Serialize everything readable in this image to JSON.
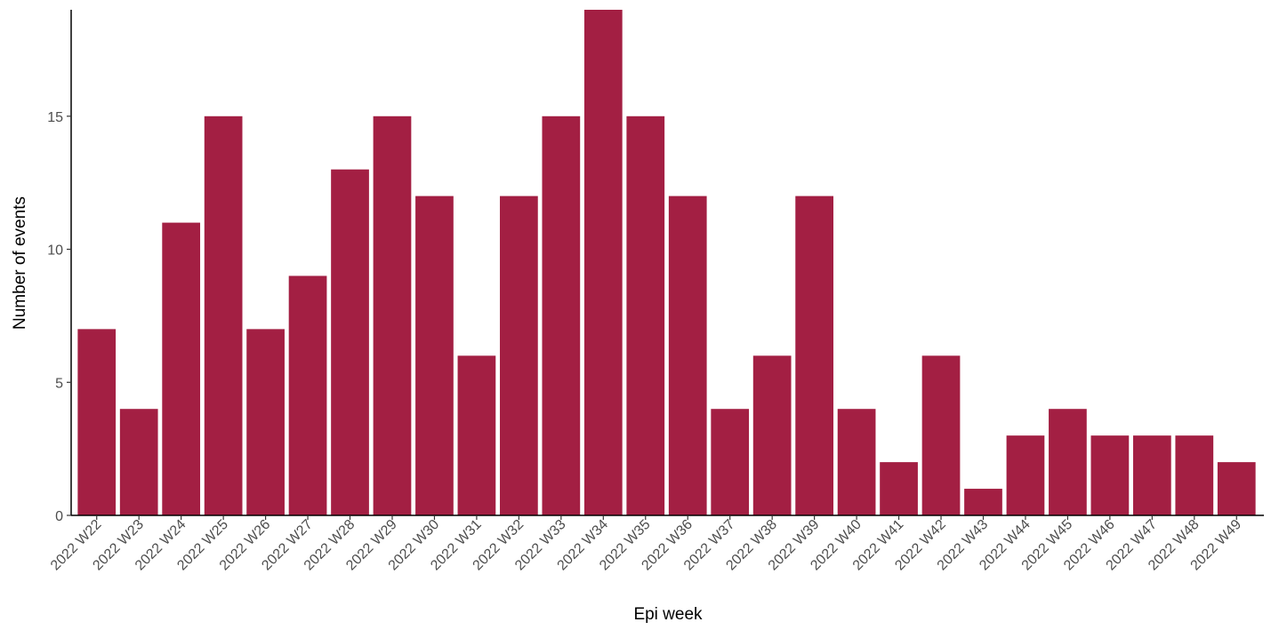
{
  "chart_data": {
    "type": "bar",
    "title": "",
    "xlabel": "Epi week",
    "ylabel": "Number of events",
    "categories": [
      "2022 W22",
      "2022 W23",
      "2022 W24",
      "2022 W25",
      "2022 W26",
      "2022 W27",
      "2022 W28",
      "2022 W29",
      "2022 W30",
      "2022 W31",
      "2022 W32",
      "2022 W33",
      "2022 W34",
      "2022 W35",
      "2022 W36",
      "2022 W37",
      "2022 W38",
      "2022 W39",
      "2022 W40",
      "2022 W41",
      "2022 W42",
      "2022 W43",
      "2022 W44",
      "2022 W45",
      "2022 W46",
      "2022 W47",
      "2022 W48",
      "2022 W49"
    ],
    "values": [
      7,
      4,
      11,
      15,
      7,
      9,
      13,
      15,
      12,
      6,
      12,
      15,
      19,
      15,
      12,
      4,
      6,
      12,
      4,
      2,
      6,
      1,
      3,
      4,
      3,
      3,
      3,
      2
    ],
    "ylim": [
      0,
      19
    ],
    "yticks": [
      0,
      5,
      10,
      15
    ],
    "grid": false,
    "bar_color": "#a31f43"
  }
}
